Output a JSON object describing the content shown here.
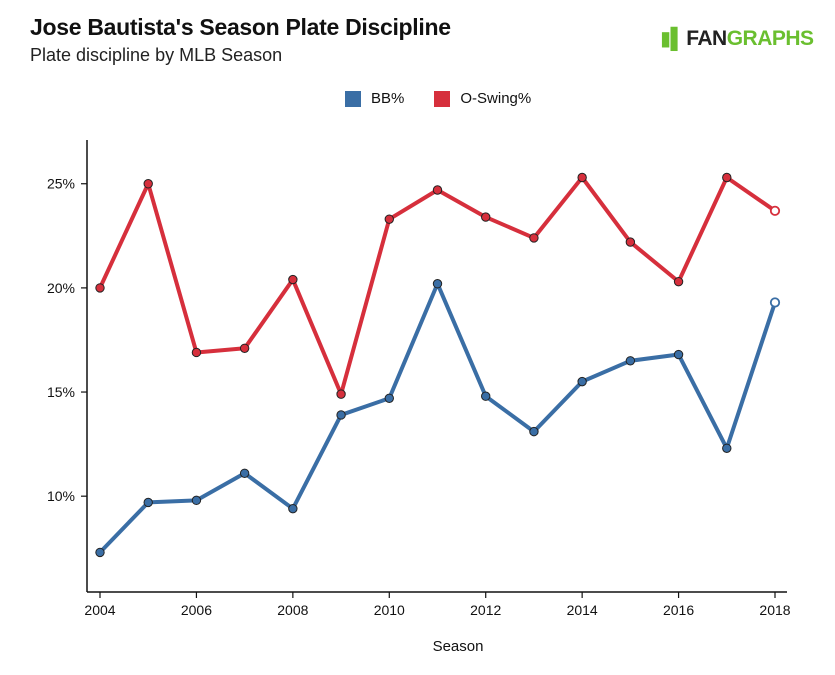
{
  "header": {
    "title": "Jose Bautista's Season Plate Discipline",
    "subtitle": "Plate discipline by MLB Season"
  },
  "logo": {
    "fan": "FAN",
    "graphs": "GRAPHS",
    "glyph_icon": "fangraphs-bars-icon"
  },
  "colors": {
    "bb": "#3a6ea5",
    "oswing": "#d62f3c",
    "marker_stroke": "#222222"
  },
  "chart_data": {
    "type": "line",
    "title": "Jose Bautista's Season Plate Discipline",
    "subtitle": "Plate discipline by MLB Season",
    "xlabel": "Season",
    "ylabel": "",
    "x": [
      2004,
      2005,
      2006,
      2007,
      2008,
      2009,
      2010,
      2011,
      2012,
      2013,
      2014,
      2015,
      2016,
      2017,
      2018
    ],
    "xlim": [
      2004,
      2018
    ],
    "ylim": [
      5.4,
      27.1
    ],
    "x_ticks": [
      2004,
      2006,
      2008,
      2010,
      2012,
      2014,
      2016,
      2018
    ],
    "y_ticks": [
      10,
      15,
      20,
      25
    ],
    "y_tick_labels": [
      "10%",
      "15%",
      "20%",
      "25%"
    ],
    "legend_position": "top-center",
    "grid": false,
    "series": [
      {
        "name": "BB%",
        "color": "#3a6ea5",
        "values": [
          7.3,
          9.7,
          9.8,
          11.1,
          9.4,
          13.9,
          14.7,
          20.2,
          14.8,
          13.1,
          15.5,
          16.5,
          16.8,
          12.3,
          19.3
        ],
        "hollow_last": true
      },
      {
        "name": "O-Swing%",
        "color": "#d62f3c",
        "values": [
          20.0,
          25.0,
          16.9,
          17.1,
          20.4,
          14.9,
          23.3,
          24.7,
          23.4,
          22.4,
          25.3,
          22.2,
          20.3,
          25.3,
          23.7
        ],
        "hollow_last": true
      }
    ]
  }
}
